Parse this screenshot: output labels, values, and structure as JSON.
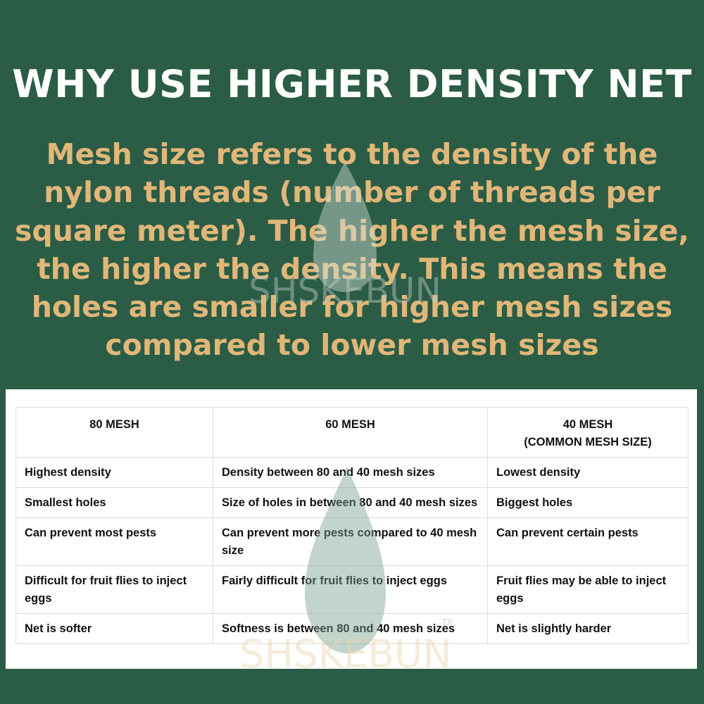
{
  "title": "WHY USE HIGHER DENSITY NET",
  "description": "Mesh size refers to the density of the nylon threads (number of threads per square meter). The higher the mesh size, the higher the density. This means the holes are smaller for higher mesh sizes compared to lower mesh sizes",
  "watermark": {
    "text": "SHSKEBUN",
    "tm": "TM"
  },
  "colors": {
    "background": "#2b5c45",
    "accent": "#e0b779",
    "title": "#ffffff"
  },
  "table": {
    "headers": [
      [
        "80 MESH"
      ],
      [
        "60 MESH"
      ],
      [
        "40 MESH",
        "(COMMON MESH SIZE)"
      ]
    ],
    "rows": [
      [
        "Highest density",
        "Density between 80 and 40 mesh sizes",
        "Lowest density"
      ],
      [
        "Smallest holes",
        "Size of holes in between 80 and 40 mesh sizes",
        "Biggest holes"
      ],
      [
        "Can prevent most pests",
        "Can prevent more pests compared to 40 mesh size",
        "Can prevent certain pests"
      ],
      [
        "Difficult for fruit flies to inject eggs",
        "Fairly difficult for fruit flies to inject eggs",
        "Fruit flies may be able to inject eggs"
      ],
      [
        "Net is softer",
        "Softness is between 80 and 40 mesh sizes",
        "Net is slightly harder"
      ]
    ]
  }
}
